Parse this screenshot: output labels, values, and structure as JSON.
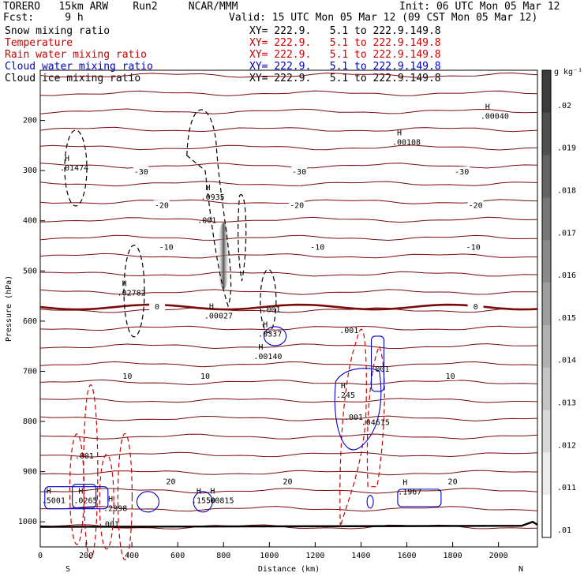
{
  "header": {
    "model": "TORERO   15km ARW    Run2     NCAR/MMM",
    "init": "Init: 06 UTC Mon 05 Mar 12",
    "fcst": "Fcst:     9 h",
    "valid": "Valid: 15 UTC Mon 05 Mar 12 (09 CST Mon 05 Mar 12)",
    "fields": [
      {
        "name": "Snow mixing ratio",
        "xy": "XY= 222.9.   5.1 to 222.9.149.8",
        "color": "#000000"
      },
      {
        "name": "Temperature",
        "xy": "XY= 222.9.   5.1 to 222.9.149.8",
        "color": "#cc0000"
      },
      {
        "name": "Rain water mixing ratio",
        "xy": "XY= 222.9.   5.1 to 222.9.149.8",
        "color": "#cc0000"
      },
      {
        "name": "Cloud water mixing ratio",
        "xy": "XY= 222.9.   5.1 to 222.9.149.8",
        "color": "#0000cc"
      },
      {
        "name": "Cloud ice mixing ratio",
        "xy": "XY= 222.9.   5.1 to 222.9.149.8",
        "color": "#000000"
      }
    ]
  },
  "chart_data": {
    "type": "contour",
    "xlabel": "Distance (km)",
    "ylabel": "Pressure (hPa)",
    "xlim": [
      0,
      2170
    ],
    "ylim_hpa": [
      1050,
      100
    ],
    "x_ticks": [
      0,
      200,
      400,
      600,
      800,
      1000,
      1200,
      1400,
      1600,
      1800,
      2000
    ],
    "y_ticks": [
      200,
      300,
      400,
      500,
      600,
      700,
      800,
      900,
      1000
    ],
    "ends": {
      "left": "S",
      "right": "N"
    },
    "colorbar": {
      "unit": "g kg⁻¹",
      "ticks": [
        ".02",
        ".019",
        ".018",
        ".017",
        ".016",
        ".015",
        ".014",
        ".013",
        ".012",
        ".011",
        ".01"
      ]
    },
    "temperature_contours": [
      {
        "label": "-30",
        "label_positions_km": [
          440,
          1130,
          1840
        ],
        "pressure_hpa": 303
      },
      {
        "label": "-20",
        "label_positions_km": [
          530,
          1120,
          1900
        ],
        "pressure_hpa": 370
      },
      {
        "label": "-10",
        "label_positions_km": [
          550,
          1210,
          1890
        ],
        "pressure_hpa": 453
      },
      {
        "label": "0",
        "label_positions_km": [
          510,
          1900
        ],
        "pressure_hpa": 572
      },
      {
        "label": "10",
        "label_positions_km": [
          380,
          720,
          1790
        ],
        "pressure_hpa": 710
      },
      {
        "label": "20",
        "label_positions_km": [
          570,
          1080,
          1800
        ],
        "pressure_hpa": 920
      }
    ],
    "annotations": [
      {
        "text": ".01474",
        "x_km": 155,
        "p_hpa": 295,
        "color": "#000000",
        "marker": "H"
      },
      {
        "text": ".0935",
        "x_km": 770,
        "p_hpa": 353,
        "color": "#000000",
        "marker": "H"
      },
      {
        "text": ".001",
        "x_km": 755,
        "p_hpa": 400,
        "color": "#000000"
      },
      {
        "text": ".00108",
        "x_km": 1605,
        "p_hpa": 244,
        "color": "#000000",
        "marker": "H"
      },
      {
        "text": ".00040",
        "x_km": 1990,
        "p_hpa": 192,
        "color": "#000000",
        "marker": "H"
      },
      {
        "text": ".02782",
        "x_km": 405,
        "p_hpa": 544,
        "color": "#000000",
        "marker": "H"
      },
      {
        "text": ".00027",
        "x_km": 785,
        "p_hpa": 590,
        "color": "#cc0000",
        "marker": "H"
      },
      {
        "text": ".001",
        "x_km": 1035,
        "p_hpa": 577,
        "color": "#000000"
      },
      {
        "text": ".0337",
        "x_km": 1020,
        "p_hpa": 626,
        "color": "#0000cc",
        "marker": "H"
      },
      {
        "text": ".00140",
        "x_km": 1000,
        "p_hpa": 671,
        "color": "#cc0000",
        "marker": "H"
      },
      {
        "text": ".001",
        "x_km": 1375,
        "p_hpa": 619,
        "color": "#cc0000"
      },
      {
        "text": ".001",
        "x_km": 1510,
        "p_hpa": 696,
        "color": "#cc0000"
      },
      {
        "text": ".245",
        "x_km": 1360,
        "p_hpa": 748,
        "color": "#0000cc",
        "marker": "H"
      },
      {
        "text": ".001",
        "x_km": 1395,
        "p_hpa": 792,
        "color": "#0000cc"
      },
      {
        "text": ".04615",
        "x_km": 1470,
        "p_hpa": 802,
        "color": "#cc0000"
      },
      {
        "text": ".001",
        "x_km": 220,
        "p_hpa": 869,
        "color": "#cc0000"
      },
      {
        "text": ".5001",
        "x_km": 75,
        "p_hpa": 958,
        "color": "#0000cc",
        "marker": "H"
      },
      {
        "text": ".0265",
        "x_km": 215,
        "p_hpa": 958,
        "color": "#cc0000",
        "marker": "H"
      },
      {
        "text": ".2998",
        "x_km": 345,
        "p_hpa": 974,
        "color": "#0000cc",
        "marker": "H"
      },
      {
        "text": ".1550",
        "x_km": 730,
        "p_hpa": 958,
        "color": "#0000cc",
        "marker": "H"
      },
      {
        "text": ".00815",
        "x_km": 790,
        "p_hpa": 958,
        "color": "#cc0000",
        "marker": "H"
      },
      {
        "text": ".1967",
        "x_km": 1630,
        "p_hpa": 941,
        "color": "#0000cc",
        "marker": "H"
      },
      {
        "text": ".001",
        "x_km": 330,
        "p_hpa": 1005,
        "color": "#cc0000"
      }
    ]
  }
}
